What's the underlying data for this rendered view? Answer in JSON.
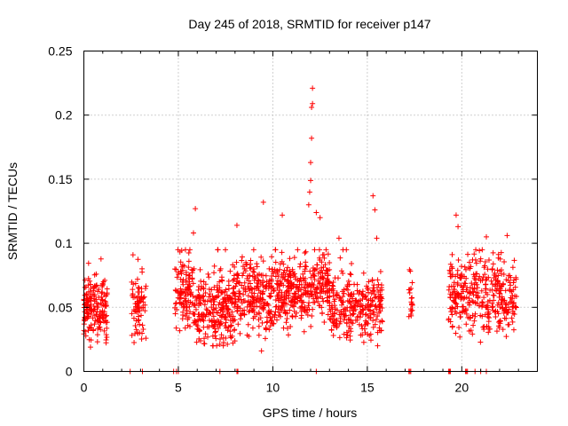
{
  "chart_data": {
    "type": "scatter",
    "title": "Day 245 of 2018, SRMTID for receiver p147",
    "xlabel": "GPS time / hours",
    "ylabel": "SRMTID / TECUs",
    "xlim": [
      0,
      24
    ],
    "ylim": [
      0,
      0.25
    ],
    "xticks": [
      0,
      5,
      10,
      15,
      20
    ],
    "xtick_labels": [
      "0",
      "5",
      "10",
      "15",
      "20"
    ],
    "yticks": [
      0,
      0.05,
      0.1,
      0.15,
      0.2,
      0.25
    ],
    "ytick_labels": [
      "0",
      "0.05",
      "0.1",
      "0.15",
      "0.2",
      "0.25"
    ],
    "grid": true,
    "marker": "plus",
    "color": "#ff0000",
    "series": [
      {
        "name": "SRMTID",
        "clusters": [
          {
            "x_start": 0.0,
            "x_end": 1.25,
            "y_center": 0.048,
            "y_spread": 0.012,
            "count": 170
          },
          {
            "x_start": 2.5,
            "x_end": 3.3,
            "y_center": 0.05,
            "y_spread": 0.013,
            "count": 75
          },
          {
            "x_start": 4.8,
            "x_end": 5.8,
            "y_center": 0.062,
            "y_spread": 0.014,
            "count": 110
          },
          {
            "x_start": 5.8,
            "x_end": 8.0,
            "y_center": 0.048,
            "y_spread": 0.013,
            "count": 260
          },
          {
            "x_start": 8.0,
            "x_end": 10.0,
            "y_center": 0.058,
            "y_spread": 0.014,
            "count": 220
          },
          {
            "x_start": 10.0,
            "x_end": 12.0,
            "y_center": 0.062,
            "y_spread": 0.013,
            "count": 230
          },
          {
            "x_start": 12.0,
            "x_end": 13.0,
            "y_center": 0.066,
            "y_spread": 0.012,
            "count": 120
          },
          {
            "x_start": 13.0,
            "x_end": 15.8,
            "y_center": 0.05,
            "y_spread": 0.012,
            "count": 280
          },
          {
            "x_start": 17.2,
            "x_end": 17.4,
            "y_center": 0.055,
            "y_spread": 0.01,
            "count": 20
          },
          {
            "x_start": 19.3,
            "x_end": 21.0,
            "y_center": 0.06,
            "y_spread": 0.014,
            "count": 170
          },
          {
            "x_start": 21.0,
            "x_end": 22.9,
            "y_center": 0.056,
            "y_spread": 0.013,
            "count": 190
          }
        ],
        "notable_points": [
          {
            "x": 0.35,
            "y": 0.019
          },
          {
            "x": 2.6,
            "y": 0.091
          },
          {
            "x": 5.8,
            "y": 0.108
          },
          {
            "x": 5.9,
            "y": 0.127
          },
          {
            "x": 8.1,
            "y": 0.114
          },
          {
            "x": 9.5,
            "y": 0.132
          },
          {
            "x": 9.4,
            "y": 0.016
          },
          {
            "x": 10.5,
            "y": 0.122
          },
          {
            "x": 11.9,
            "y": 0.13
          },
          {
            "x": 11.95,
            "y": 0.14
          },
          {
            "x": 12.0,
            "y": 0.149
          },
          {
            "x": 12.0,
            "y": 0.163
          },
          {
            "x": 12.05,
            "y": 0.182
          },
          {
            "x": 12.05,
            "y": 0.206
          },
          {
            "x": 12.1,
            "y": 0.209
          },
          {
            "x": 12.1,
            "y": 0.221
          },
          {
            "x": 12.3,
            "y": 0.124
          },
          {
            "x": 12.5,
            "y": 0.12
          },
          {
            "x": 15.3,
            "y": 0.137
          },
          {
            "x": 15.4,
            "y": 0.126
          },
          {
            "x": 15.5,
            "y": 0.104
          },
          {
            "x": 19.7,
            "y": 0.122
          },
          {
            "x": 19.8,
            "y": 0.113
          },
          {
            "x": 21.3,
            "y": 0.105
          },
          {
            "x": 22.4,
            "y": 0.106
          },
          {
            "x": 13.5,
            "y": 0.104
          }
        ]
      },
      {
        "name": "zero-value markers",
        "points": [
          {
            "x": 2.45,
            "y": 0
          },
          {
            "x": 3.1,
            "y": 0
          },
          {
            "x": 4.75,
            "y": 0
          },
          {
            "x": 4.9,
            "y": 0
          },
          {
            "x": 5.0,
            "y": 0
          },
          {
            "x": 7.2,
            "y": 0
          },
          {
            "x": 8.1,
            "y": 0
          },
          {
            "x": 8.15,
            "y": 0
          },
          {
            "x": 12.3,
            "y": 0
          },
          {
            "x": 17.2,
            "y": 0
          },
          {
            "x": 17.25,
            "y": 0
          },
          {
            "x": 17.3,
            "y": 0
          },
          {
            "x": 19.3,
            "y": 0
          },
          {
            "x": 19.35,
            "y": 0
          },
          {
            "x": 19.4,
            "y": 0
          },
          {
            "x": 20.2,
            "y": 0
          },
          {
            "x": 20.25,
            "y": 0
          },
          {
            "x": 20.3,
            "y": 0
          },
          {
            "x": 20.7,
            "y": 0
          },
          {
            "x": 21.0,
            "y": 0
          },
          {
            "x": 21.3,
            "y": 0
          }
        ]
      }
    ]
  }
}
